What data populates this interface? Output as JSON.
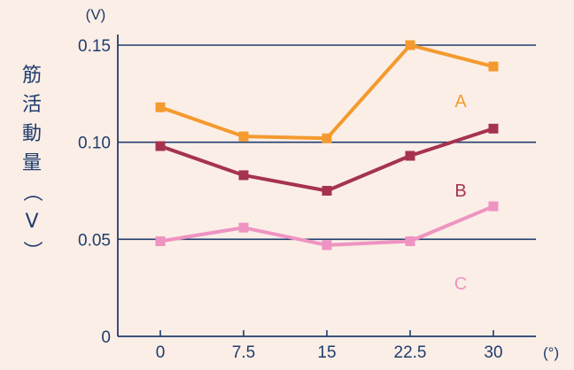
{
  "chart_data": {
    "type": "line",
    "title": "",
    "ylabel": "筋活動量（V）",
    "ylabel_chars": [
      "筋",
      "活",
      "動",
      "量",
      "（",
      "V",
      "）"
    ],
    "y_unit": "(V)",
    "x_unit": "(°)",
    "x": [
      0,
      7.5,
      15,
      22.5,
      30
    ],
    "x_tick_labels": [
      "0",
      "7.5",
      "15",
      "22.5",
      "30"
    ],
    "ylim": [
      0,
      0.15
    ],
    "y_ticks": [
      0,
      0.05,
      0.1,
      0.15
    ],
    "y_tick_labels": [
      "0",
      "0.05",
      "0.10",
      "0.15"
    ],
    "grid": "horizontal",
    "series": [
      {
        "name": "A",
        "color": "#f49a2e",
        "values": [
          0.118,
          0.103,
          0.102,
          0.15,
          0.139
        ]
      },
      {
        "name": "B",
        "color": "#a5334f",
        "values": [
          0.098,
          0.083,
          0.075,
          0.093,
          0.107
        ]
      },
      {
        "name": "C",
        "color": "#ef93c2",
        "values": [
          0.049,
          0.056,
          0.047,
          0.049,
          0.067
        ]
      }
    ]
  },
  "colors": {
    "background": "#fbeee6",
    "axis": "#1f3d6e",
    "grid": "#1f3d6e"
  }
}
